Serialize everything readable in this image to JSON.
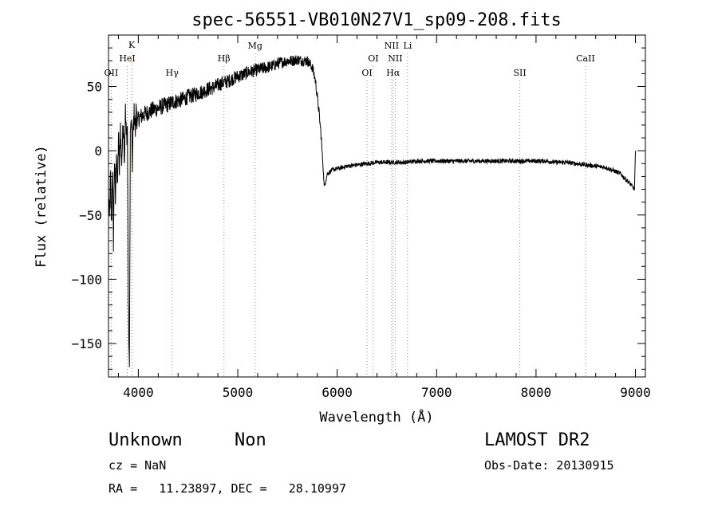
{
  "chart_data": {
    "type": "line",
    "title": "spec-56551-VB010N27V1_sp09-208.fits",
    "xlabel": "Wavelength (Å)",
    "ylabel": "Flux (relative)",
    "xlim": [
      3700,
      9100
    ],
    "ylim": [
      -176,
      90
    ],
    "xticks": [
      4000,
      5000,
      6000,
      7000,
      8000,
      9000
    ],
    "xtick_labels": [
      "4000",
      "5000",
      "6000",
      "7000",
      "8000",
      "9000"
    ],
    "yticks": [
      -150,
      -100,
      -50,
      0,
      50
    ],
    "ytick_labels": [
      "−150",
      "−100",
      "−50",
      "0",
      "50"
    ],
    "grid": false,
    "series": [
      {
        "x": [
          3700,
          3710,
          3720,
          3730,
          3740,
          3750,
          3760,
          3770,
          3780,
          3790,
          3800,
          3810,
          3820,
          3830,
          3840,
          3850,
          3860,
          3870,
          3880,
          3890,
          3900,
          3910,
          3920,
          3930,
          3940,
          3950,
          3960,
          3970,
          3980,
          3990,
          4000,
          4050,
          4100,
          4150,
          4200,
          4250,
          4300,
          4350,
          4400,
          4450,
          4500,
          4550,
          4600,
          4650,
          4700,
          4750,
          4800,
          4850,
          4900,
          4950,
          5000,
          5050,
          5100,
          5150,
          5200,
          5250,
          5300,
          5350,
          5400,
          5450,
          5500,
          5550,
          5600,
          5650,
          5700,
          5750,
          5780,
          5800,
          5820,
          5840,
          5860,
          5870,
          5880,
          5900,
          5950,
          6000,
          6100,
          6200,
          6300,
          6400,
          6500,
          6600,
          6700,
          6800,
          6900,
          7000,
          7100,
          7200,
          7300,
          7400,
          7500,
          7600,
          7700,
          7800,
          7900,
          8000,
          8100,
          8200,
          8300,
          8400,
          8500,
          8600,
          8700,
          8800,
          8850,
          8900,
          8950,
          8990,
          9000
        ],
        "y": [
          -30,
          -55,
          -20,
          -60,
          -10,
          -70,
          -5,
          -40,
          5,
          -35,
          15,
          -20,
          20,
          -10,
          5,
          25,
          -5,
          30,
          10,
          20,
          -120,
          -170,
          15,
          25,
          -10,
          20,
          30,
          15,
          35,
          20,
          25,
          28,
          30,
          32,
          33,
          35,
          36,
          38,
          39,
          40,
          42,
          43,
          45,
          46,
          48,
          49,
          51,
          53,
          54,
          56,
          58,
          59,
          61,
          62,
          63,
          64,
          65,
          66,
          68,
          69,
          70,
          70,
          71,
          70,
          70,
          65,
          55,
          42,
          28,
          10,
          -15,
          -28,
          -25,
          -18,
          -15,
          -14,
          -12,
          -11,
          -10,
          -9,
          -9,
          -9,
          -9,
          -8,
          -8,
          -8,
          -8,
          -8,
          -8,
          -8,
          -8,
          -8,
          -8,
          -8,
          -8,
          -8,
          -8,
          -9,
          -9,
          -10,
          -11,
          -12,
          -13,
          -16,
          -18,
          -22,
          -26,
          -30,
          0
        ]
      }
    ],
    "line_markers": [
      {
        "label": "OII",
        "x": 3727,
        "row": 3
      },
      {
        "label": "K",
        "x": 3934,
        "row": 0
      },
      {
        "label": "HeI",
        "x": 3889,
        "row": 2
      },
      {
        "label": "Hγ",
        "x": 4340,
        "row": 3
      },
      {
        "label": "Hβ",
        "x": 4861,
        "row": 2
      },
      {
        "label": "Mg",
        "x": 5175,
        "row": 1
      },
      {
        "label": "OI",
        "x": 6300,
        "row": 3
      },
      {
        "label": "OI",
        "x": 6363,
        "row": 2
      },
      {
        "label": "NII",
        "x": 6548,
        "row": 1
      },
      {
        "label": "NII",
        "x": 6584,
        "row": 2
      },
      {
        "label": "Hα",
        "x": 6563,
        "row": 3
      },
      {
        "label": "Li",
        "x": 6708,
        "row": 1
      },
      {
        "label": "SII",
        "x": 7837,
        "row": 3
      },
      {
        "label": "CaII",
        "x": 8498,
        "row": 2
      }
    ]
  },
  "footer": {
    "classification": "Unknown",
    "subclass": "Non",
    "survey": "LAMOST DR2",
    "cz": "cz = NaN",
    "obs_date": "Obs-Date: 20130915",
    "coords": "RA =   11.23897, DEC =   28.10997"
  }
}
